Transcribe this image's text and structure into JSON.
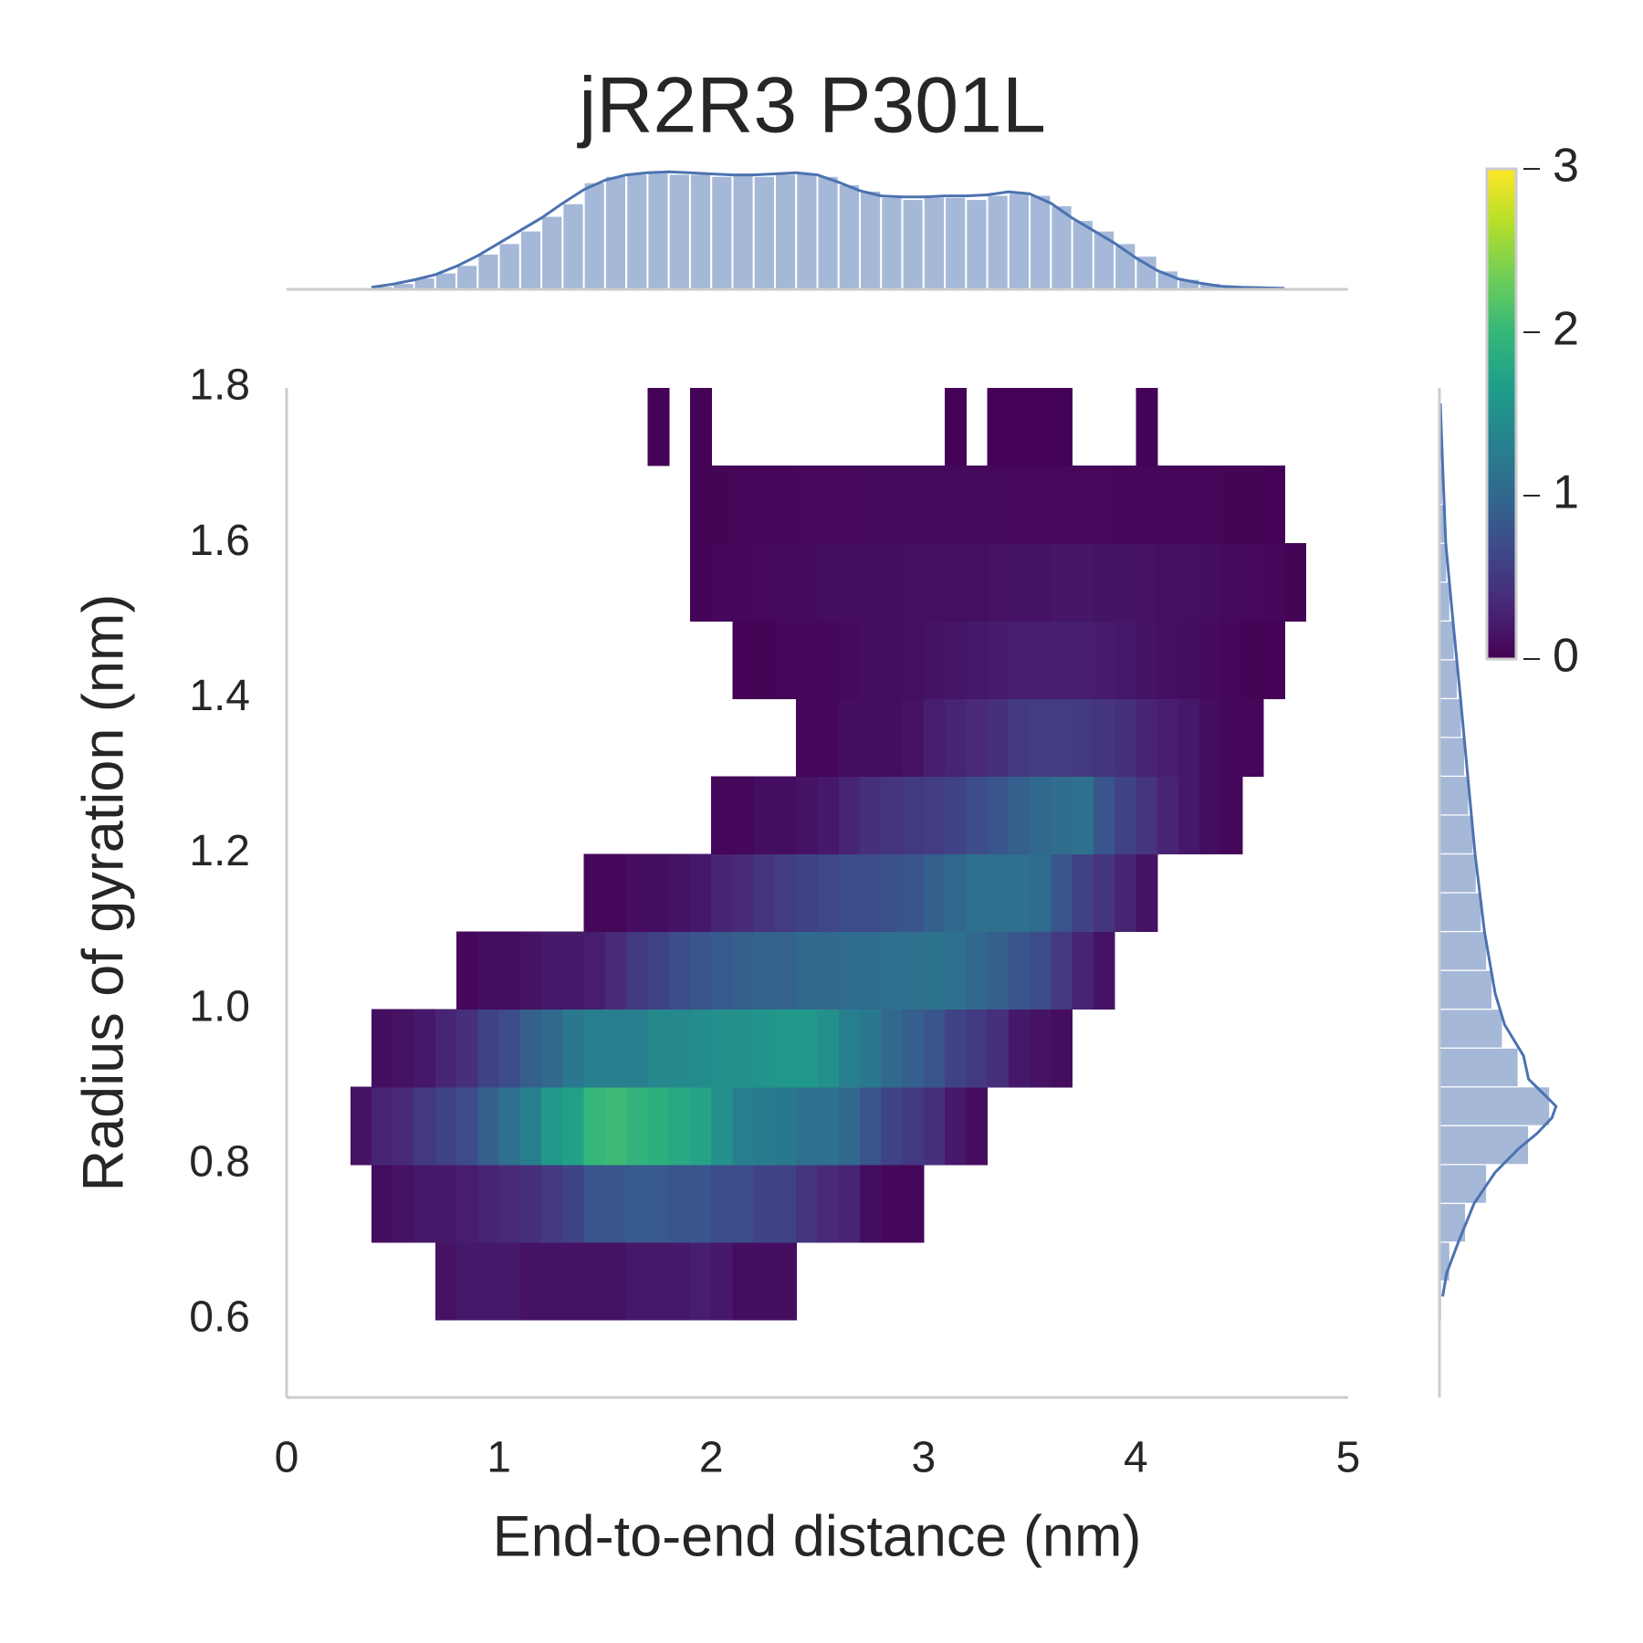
{
  "chart_data": [
    {
      "type": "heatmap",
      "title": "jR2R3 P301L",
      "xlabel": "End-to-end distance (nm)",
      "ylabel": "Radius of gyration (nm)",
      "x_edges": [
        0.3,
        0.4,
        0.5,
        0.6,
        0.7,
        0.8,
        0.9,
        1.0,
        1.1,
        1.2,
        1.3,
        1.4,
        1.5,
        1.6,
        1.7,
        1.8,
        1.9,
        2.0,
        2.1,
        2.2,
        2.3,
        2.4,
        2.5,
        2.6,
        2.7,
        2.8,
        2.9,
        3.0,
        3.1,
        3.2,
        3.3,
        3.4,
        3.5,
        3.6,
        3.7,
        3.8,
        3.9,
        4.0,
        4.1,
        4.2,
        4.3,
        4.4,
        4.5,
        4.6,
        4.7,
        4.8
      ],
      "y_edges": [
        0.6,
        0.7,
        0.8,
        0.9,
        1.0,
        1.1,
        1.2,
        1.3,
        1.4,
        1.5,
        1.6,
        1.7,
        1.8
      ],
      "z": [
        [
          null,
          null,
          null,
          null,
          0.15,
          0.2,
          0.2,
          0.2,
          0.15,
          0.15,
          0.15,
          0.15,
          0.15,
          0.2,
          0.2,
          0.2,
          0.25,
          0.2,
          0.1,
          0.1,
          0.1,
          null,
          null,
          null,
          null,
          null,
          null,
          null,
          null,
          null,
          null,
          null,
          null,
          null,
          null,
          null,
          null,
          null,
          null,
          null,
          null,
          null,
          null,
          null,
          null
        ],
        [
          null,
          0.1,
          0.15,
          0.2,
          0.2,
          0.25,
          0.3,
          0.35,
          0.4,
          0.5,
          0.6,
          0.8,
          0.8,
          0.85,
          0.85,
          0.8,
          0.8,
          0.7,
          0.7,
          0.6,
          0.6,
          0.45,
          0.35,
          0.3,
          0.1,
          0.05,
          0.05,
          null,
          null,
          null,
          null,
          null,
          null,
          null,
          null,
          null,
          null,
          null,
          null,
          null,
          null,
          null,
          null,
          null,
          null
        ],
        [
          0.15,
          0.3,
          0.35,
          0.5,
          0.6,
          0.7,
          0.9,
          1.1,
          1.3,
          1.6,
          1.7,
          2.0,
          2.05,
          1.95,
          1.9,
          1.8,
          1.75,
          1.5,
          1.3,
          1.25,
          1.2,
          1.1,
          1.1,
          1.0,
          0.8,
          0.6,
          0.5,
          0.4,
          0.2,
          0.1,
          null,
          null,
          null,
          null,
          null,
          null,
          null,
          null,
          null,
          null,
          null,
          null,
          null,
          null,
          null
        ],
        [
          null,
          0.1,
          0.15,
          0.2,
          0.3,
          0.4,
          0.6,
          0.7,
          0.9,
          1.0,
          1.2,
          1.3,
          1.3,
          1.3,
          1.4,
          1.4,
          1.45,
          1.5,
          1.5,
          1.55,
          1.6,
          1.6,
          1.5,
          1.3,
          1.2,
          1.0,
          0.9,
          0.8,
          0.6,
          0.5,
          0.4,
          0.2,
          0.15,
          0.1,
          null,
          null,
          null,
          null,
          null,
          null,
          null,
          null,
          null,
          null,
          null
        ],
        [
          null,
          null,
          null,
          null,
          null,
          0.05,
          0.1,
          0.1,
          0.15,
          0.2,
          0.2,
          0.25,
          0.35,
          0.5,
          0.6,
          0.7,
          0.8,
          0.85,
          0.9,
          0.95,
          0.95,
          1.0,
          1.0,
          1.05,
          1.05,
          1.1,
          1.1,
          1.15,
          1.1,
          1.0,
          0.9,
          0.8,
          0.7,
          0.5,
          0.3,
          0.15,
          null,
          null,
          null,
          null,
          null,
          null,
          null,
          null,
          null
        ],
        [
          null,
          null,
          null,
          null,
          null,
          null,
          null,
          null,
          null,
          null,
          null,
          0.05,
          0.05,
          0.1,
          0.1,
          0.15,
          0.2,
          0.3,
          0.35,
          0.45,
          0.55,
          0.6,
          0.65,
          0.7,
          0.7,
          0.75,
          0.8,
          0.9,
          1.0,
          1.1,
          1.1,
          1.1,
          1.05,
          0.8,
          0.6,
          0.45,
          0.3,
          0.15,
          null,
          null,
          null,
          null,
          null,
          null,
          null
        ],
        [
          null,
          null,
          null,
          null,
          null,
          null,
          null,
          null,
          null,
          null,
          null,
          null,
          null,
          null,
          null,
          null,
          null,
          0.05,
          0.05,
          0.1,
          0.1,
          0.15,
          0.2,
          0.3,
          0.4,
          0.45,
          0.5,
          0.55,
          0.6,
          0.7,
          0.8,
          0.9,
          1.0,
          1.05,
          1.1,
          0.8,
          0.6,
          0.45,
          0.3,
          0.2,
          0.1,
          0.05,
          null,
          null,
          null
        ],
        [
          null,
          null,
          null,
          null,
          null,
          null,
          null,
          null,
          null,
          null,
          null,
          null,
          null,
          null,
          null,
          null,
          null,
          null,
          null,
          null,
          null,
          0.05,
          0.05,
          0.1,
          0.1,
          0.1,
          0.15,
          0.25,
          0.3,
          0.35,
          0.4,
          0.5,
          0.55,
          0.55,
          0.5,
          0.45,
          0.4,
          0.3,
          0.25,
          0.2,
          0.1,
          0.05,
          0.05,
          null,
          null
        ],
        [
          null,
          null,
          null,
          null,
          null,
          null,
          null,
          null,
          null,
          null,
          null,
          null,
          null,
          null,
          null,
          null,
          null,
          null,
          0.02,
          0.03,
          0.05,
          0.05,
          0.05,
          0.08,
          0.1,
          0.1,
          0.12,
          0.15,
          0.18,
          0.2,
          0.22,
          0.25,
          0.25,
          0.25,
          0.25,
          0.22,
          0.2,
          0.15,
          0.12,
          0.1,
          0.08,
          0.05,
          0.03,
          0.02,
          null
        ],
        [
          null,
          null,
          null,
          null,
          null,
          null,
          null,
          null,
          null,
          null,
          null,
          null,
          null,
          null,
          null,
          null,
          0.03,
          0.05,
          0.05,
          0.06,
          0.08,
          0.08,
          0.1,
          0.1,
          0.1,
          0.1,
          0.12,
          0.12,
          0.12,
          0.12,
          0.14,
          0.15,
          0.15,
          0.18,
          0.18,
          0.16,
          0.15,
          0.14,
          0.12,
          0.12,
          0.1,
          0.08,
          0.06,
          0.05,
          0.03
        ],
        [
          null,
          null,
          null,
          null,
          null,
          null,
          null,
          null,
          null,
          null,
          null,
          null,
          null,
          null,
          null,
          null,
          0.03,
          0.03,
          0.04,
          0.05,
          0.05,
          0.06,
          0.06,
          0.06,
          0.07,
          0.07,
          0.07,
          0.07,
          0.07,
          0.07,
          0.07,
          0.06,
          0.06,
          0.06,
          0.06,
          0.06,
          0.05,
          0.05,
          0.05,
          0.04,
          0.04,
          0.03,
          0.03,
          0.02,
          null
        ],
        [
          null,
          null,
          null,
          null,
          null,
          null,
          null,
          null,
          null,
          null,
          null,
          null,
          null,
          null,
          0.02,
          null,
          0.02,
          null,
          null,
          null,
          null,
          null,
          null,
          null,
          null,
          null,
          null,
          null,
          0.02,
          null,
          0.02,
          0.02,
          0.02,
          0.02,
          null,
          null,
          null,
          0.02,
          null,
          null,
          null,
          null,
          null,
          null,
          null
        ]
      ],
      "xlim": [
        0,
        5
      ],
      "ylim": [
        0.5,
        1.8
      ],
      "xticks": [
        0,
        1,
        2,
        3,
        4,
        5
      ],
      "yticks": [
        0.6,
        0.8,
        {
          "value": 1,
          "label": "1.0"
        },
        1.2,
        1.4,
        1.6,
        1.8
      ],
      "colormap": "viridis",
      "clim": [
        0,
        3
      ],
      "cbar_ticks": [
        0,
        1,
        2,
        3
      ],
      "grid": false
    },
    {
      "type": "histogram",
      "orientation": "vertical",
      "color": "#a5b8d8",
      "kde_color": "#4c72b0",
      "bins": [
        0.3,
        0.4,
        0.5,
        0.6,
        0.7,
        0.8,
        0.9,
        1.0,
        1.1,
        1.2,
        1.3,
        1.4,
        1.5,
        1.6,
        1.7,
        1.8,
        1.9,
        2.0,
        2.1,
        2.2,
        2.3,
        2.4,
        2.5,
        2.6,
        2.7,
        2.8,
        2.9,
        3.0,
        3.1,
        3.2,
        3.3,
        3.4,
        3.5,
        3.6,
        3.7,
        3.8,
        3.9,
        4.0,
        4.1,
        4.2,
        4.3,
        4.4,
        4.5,
        4.6,
        4.7,
        4.8
      ],
      "values": [
        0.002,
        0.008,
        0.015,
        0.028,
        0.04,
        0.058,
        0.085,
        0.11,
        0.14,
        0.175,
        0.205,
        0.255,
        0.27,
        0.275,
        0.278,
        0.275,
        0.275,
        0.27,
        0.272,
        0.27,
        0.275,
        0.276,
        0.27,
        0.25,
        0.235,
        0.22,
        0.215,
        0.22,
        0.22,
        0.215,
        0.225,
        0.23,
        0.225,
        0.2,
        0.165,
        0.14,
        0.11,
        0.08,
        0.045,
        0.025,
        0.015,
        0.008,
        0.005,
        0.003,
        0.002
      ],
      "kde": {
        "at": [
          0.4,
          0.5,
          0.6,
          0.7,
          0.8,
          0.9,
          1.0,
          1.1,
          1.2,
          1.3,
          1.4,
          1.5,
          1.6,
          1.7,
          1.8,
          1.9,
          2.0,
          2.1,
          2.2,
          2.3,
          2.4,
          2.5,
          2.6,
          2.7,
          2.8,
          2.9,
          3.0,
          3.1,
          3.2,
          3.3,
          3.4,
          3.5,
          3.6,
          3.7,
          3.8,
          3.9,
          4.0,
          4.1,
          4.2,
          4.3,
          4.4,
          4.5,
          4.6,
          4.7
        ],
        "density": [
          0.005,
          0.0125,
          0.0225,
          0.035,
          0.055,
          0.08,
          0.11,
          0.14,
          0.17,
          0.205,
          0.2375,
          0.26,
          0.2725,
          0.2775,
          0.28,
          0.2775,
          0.275,
          0.2725,
          0.2725,
          0.275,
          0.2775,
          0.2725,
          0.255,
          0.235,
          0.2225,
          0.22,
          0.22,
          0.2225,
          0.2225,
          0.225,
          0.2325,
          0.2275,
          0.205,
          0.17,
          0.14,
          0.11,
          0.075,
          0.045,
          0.025,
          0.015,
          0.0075,
          0.005,
          0.004,
          0.0025
        ]
      },
      "xlim": [
        0,
        5
      ],
      "ylim": [
        0,
        0.3
      ]
    },
    {
      "type": "histogram",
      "orientation": "horizontal",
      "color": "#a5b8d8",
      "kde_color": "#4c72b0",
      "bins": [
        0.6,
        0.65,
        0.7,
        0.75,
        0.8,
        0.85,
        0.9,
        0.95,
        1.0,
        1.05,
        1.1,
        1.15,
        1.2,
        1.25,
        1.3,
        1.35,
        1.4,
        1.45,
        1.5,
        1.55,
        1.6,
        1.65,
        1.7,
        1.75,
        1.8
      ],
      "values": [
        0.07,
        0.33,
        0.83,
        1.5,
        2.83,
        3.5,
        2.5,
        2.0,
        1.67,
        1.5,
        1.33,
        1.17,
        1.07,
        0.93,
        0.8,
        0.7,
        0.57,
        0.47,
        0.33,
        0.23,
        0.17,
        0.1,
        0.07,
        0.03
      ],
      "kde": {
        "at": [
          0.63,
          0.66,
          0.7,
          0.75,
          0.79,
          0.82,
          0.84,
          0.86,
          0.875,
          0.89,
          0.91,
          0.94,
          0.98,
          1.02,
          1.1,
          1.2,
          1.3,
          1.4,
          1.5,
          1.6,
          1.7,
          1.78
        ],
        "density": [
          0.1,
          0.23,
          0.6,
          1.1,
          1.77,
          2.5,
          3.1,
          3.57,
          3.7,
          3.33,
          2.83,
          2.67,
          2.07,
          1.77,
          1.43,
          1.13,
          0.9,
          0.67,
          0.43,
          0.2,
          0.1,
          0.03
        ]
      },
      "xlim": [
        0,
        4
      ],
      "ylim": [
        0.5,
        1.8
      ]
    }
  ]
}
